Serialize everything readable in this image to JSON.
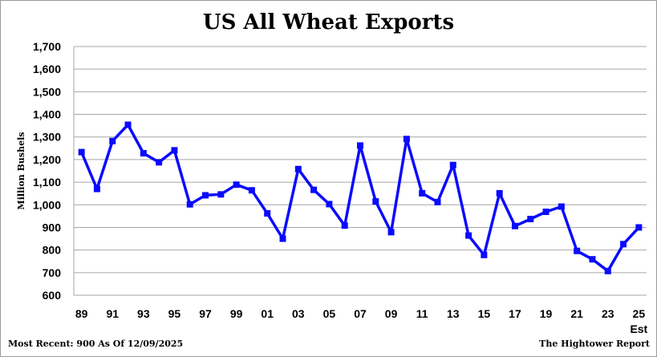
{
  "chart_data": {
    "type": "line",
    "title": "US All Wheat Exports",
    "ylabel": "Million Bushels",
    "xlabel": "",
    "ylim": [
      600,
      1700
    ],
    "yticks": [
      600,
      700,
      800,
      900,
      1000,
      1100,
      1200,
      1300,
      1400,
      1500,
      1600,
      1700
    ],
    "ytick_labels": [
      "600",
      "700",
      "800",
      "900",
      "1,000",
      "1,100",
      "1,200",
      "1,300",
      "1,400",
      "1,500",
      "1,600",
      "1,700"
    ],
    "x": [
      "89",
      "90",
      "91",
      "92",
      "93",
      "94",
      "95",
      "96",
      "97",
      "98",
      "99",
      "00",
      "01",
      "02",
      "03",
      "04",
      "05",
      "06",
      "07",
      "08",
      "09",
      "10",
      "11",
      "12",
      "13",
      "14",
      "15",
      "16",
      "17",
      "18",
      "19",
      "20",
      "21",
      "22",
      "23",
      "24",
      "25"
    ],
    "xtick_labels": [
      "89",
      "91",
      "93",
      "95",
      "97",
      "99",
      "01",
      "03",
      "05",
      "07",
      "09",
      "11",
      "13",
      "15",
      "17",
      "19",
      "21",
      "23",
      "25"
    ],
    "x_last_sublabel": "Est",
    "grid": true,
    "line_color": "#0a0aff",
    "series": [
      {
        "values": [
          1233,
          1070,
          1282,
          1354,
          1228,
          1188,
          1241,
          1002,
          1042,
          1046,
          1089,
          1064,
          962,
          850,
          1158,
          1066,
          1003,
          908,
          1262,
          1015,
          879,
          1291,
          1051,
          1012,
          1176,
          864,
          778,
          1051,
          906,
          937,
          969,
          992,
          796,
          759,
          707,
          826,
          900
        ]
      }
    ]
  },
  "footer": {
    "left": "Most Recent: 900 As Of 12/09/2025",
    "right": "The Hightower Report"
  }
}
